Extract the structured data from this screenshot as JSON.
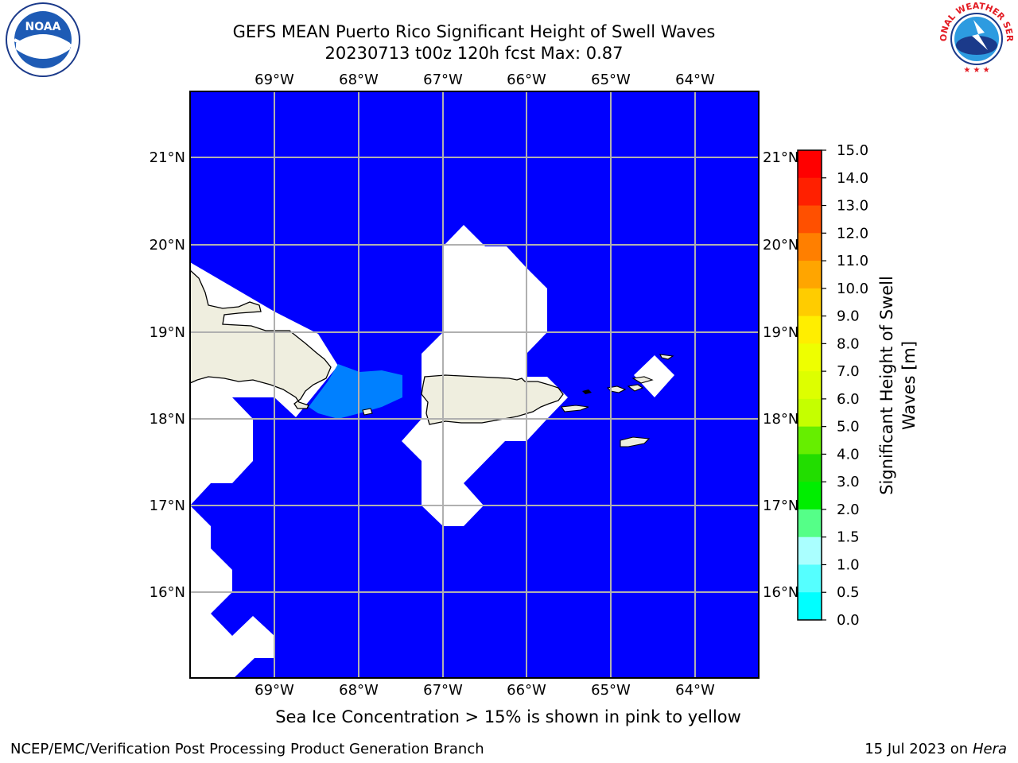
{
  "header": {
    "title_line1": "GEFS MEAN Puerto Rico Significant Height of Swell Waves",
    "title_line2": "20230713 t00z 120h fcst   Max: 0.87"
  },
  "map": {
    "lon_labels": [
      "69°W",
      "68°W",
      "67°W",
      "66°W",
      "65°W",
      "64°W"
    ],
    "lat_labels": [
      "21°N",
      "20°N",
      "19°N",
      "18°N",
      "17°N",
      "16°N"
    ],
    "colors": {
      "ocean": "#0000ff",
      "land": "#efeedf",
      "masked": "#ffffff",
      "band_0_5": "#0080ff",
      "grid": "#b0b0b0"
    }
  },
  "colorbar": {
    "label_line1": "Significant Height of Swell",
    "label_line2": "Waves [m]",
    "ticks": [
      "15.0",
      "14.0",
      "13.0",
      "12.0",
      "11.0",
      "10.0",
      "9.0",
      "8.0",
      "7.0",
      "6.0",
      "5.0",
      "4.0",
      "3.0",
      "2.0",
      "1.5",
      "1.0",
      "0.5",
      "0.0"
    ],
    "colors": [
      "#ff0000",
      "#ff2000",
      "#ff5000",
      "#ff7f00",
      "#ffa500",
      "#ffcc00",
      "#ffee00",
      "#eeff00",
      "#ddff00",
      "#c5ff00",
      "#66ee00",
      "#22dd00",
      "#00ee00",
      "#55ff88",
      "#aaffff",
      "#55ffff",
      "#00ffff",
      "#0080ff",
      "#0000ff"
    ]
  },
  "note": "Sea Ice Concentration > 15% is shown in pink to yellow",
  "footer": {
    "left": "NCEP/EMC/Verification Post Processing Product Generation Branch",
    "date": "15 Jul 2023 on ",
    "host": "Hera"
  },
  "logos": {
    "noaa_text": "NOAA",
    "nws_text": "NATIONAL WEATHER SERVICE"
  }
}
